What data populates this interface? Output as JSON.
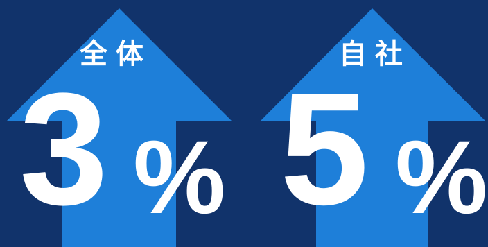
{
  "panels": [
    {
      "label": "全体",
      "value": "3",
      "unit": "%"
    },
    {
      "label": "自社",
      "value": "5",
      "unit": "%"
    }
  ],
  "colors": {
    "background": "#11336b",
    "arrow": "#1e7fd9",
    "text": "#ffffff"
  }
}
